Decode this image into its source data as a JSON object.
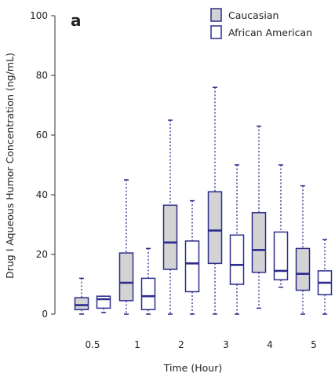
{
  "chart_data": {
    "type": "boxplot",
    "panel_label": "a",
    "xlabel": "Time (Hour)",
    "ylabel": "Drug I Aqueous Humor Concentration (ng/mL)",
    "ylim": [
      0,
      100
    ],
    "y_ticks": [
      0,
      20,
      40,
      60,
      80,
      100
    ],
    "categories": [
      "0.5",
      "1",
      "2",
      "3",
      "4",
      "5"
    ],
    "legend_position": "top-right",
    "colors": {
      "stroke": "#2b2c8c",
      "fill_caucasian": "#d3d3d3",
      "fill_african_american": "#ffffff",
      "axis": "#333333"
    },
    "series": [
      {
        "name": "Caucasian",
        "boxes": [
          {
            "min": 0,
            "q1": 1.5,
            "median": 3,
            "q3": 5.5,
            "max": 12
          },
          {
            "min": 0,
            "q1": 4.5,
            "median": 10.5,
            "q3": 20.5,
            "max": 45
          },
          {
            "min": 0,
            "q1": 15,
            "median": 24,
            "q3": 36.5,
            "max": 65
          },
          {
            "min": 0,
            "q1": 17,
            "median": 28,
            "q3": 41,
            "max": 76
          },
          {
            "min": 2,
            "q1": 14,
            "median": 21.5,
            "q3": 34,
            "max": 63
          },
          {
            "min": 0,
            "q1": 8,
            "median": 13.5,
            "q3": 22,
            "max": 43
          }
        ]
      },
      {
        "name": "African American",
        "boxes": [
          {
            "min": 0.5,
            "q1": 2,
            "median": 5,
            "q3": 6,
            "max": 6
          },
          {
            "min": 0,
            "q1": 1.5,
            "median": 6,
            "q3": 12,
            "max": 22
          },
          {
            "min": 0,
            "q1": 7.5,
            "median": 17,
            "q3": 24.5,
            "max": 38
          },
          {
            "min": 0,
            "q1": 10,
            "median": 16.5,
            "q3": 26.5,
            "max": 50
          },
          {
            "min": 9,
            "q1": 11.5,
            "median": 14.5,
            "q3": 27.5,
            "max": 50
          },
          {
            "min": 0,
            "q1": 6.5,
            "median": 10.5,
            "q3": 14.5,
            "max": 25
          }
        ]
      }
    ]
  }
}
